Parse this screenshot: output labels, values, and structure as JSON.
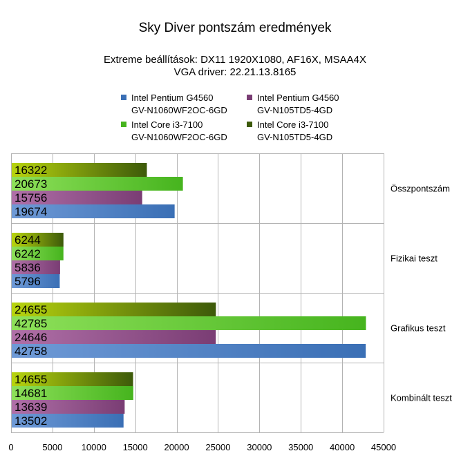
{
  "chart_data": {
    "type": "bar",
    "orientation": "horizontal",
    "title": "Sky Diver pontszám eredmények",
    "subtitle": [
      "Extreme beállítások: DX11 1920X1080, AF16X, MSAA4X",
      "VGA driver: 22.21.13.8165"
    ],
    "categories": [
      "Összpontszám",
      "Fizikai teszt",
      "Grafikus teszt",
      "Kombinált teszt"
    ],
    "series": [
      {
        "name": "Intel Pentium G4560 GV-N1060WF2OC-6GD",
        "name_lines": [
          "Intel Pentium G4560",
          "GV-N1060WF2OC-6GD"
        ],
        "color": "#3a6fb5",
        "color_light": "#6f9ad6",
        "values": [
          19674,
          5796,
          42758,
          13502
        ]
      },
      {
        "name": "Intel Pentium G4560 GV-N105TD5-4GD",
        "name_lines": [
          "Intel Pentium G4560",
          "GV-N105TD5-4GD"
        ],
        "color": "#7a3d74",
        "color_light": "#b070a8",
        "values": [
          15756,
          5836,
          24646,
          13639
        ]
      },
      {
        "name": "Intel Core i3-7100 GV-N1060WF2OC-6GD",
        "name_lines": [
          "Intel Core i3-7100",
          "GV-N1060WF2OC-6GD"
        ],
        "color": "#46b41e",
        "color_light": "#8ee05a",
        "values": [
          20673,
          6242,
          42785,
          14681
        ]
      },
      {
        "name": "Intel Core i3-7100 GV-N105TD5-4GD",
        "name_lines": [
          "Intel Core i3-7100",
          "GV-N105TD5-4GD"
        ],
        "color": "#3d5a0a",
        "color_light": "#b8d40e",
        "values": [
          16322,
          6244,
          24655,
          14655
        ]
      }
    ],
    "xlim": [
      0,
      45000
    ],
    "xticks": [
      "0",
      "5000",
      "10000",
      "15000",
      "20000",
      "25000",
      "30000",
      "35000",
      "40000",
      "45000"
    ],
    "grid": true,
    "legend_position": "top"
  }
}
